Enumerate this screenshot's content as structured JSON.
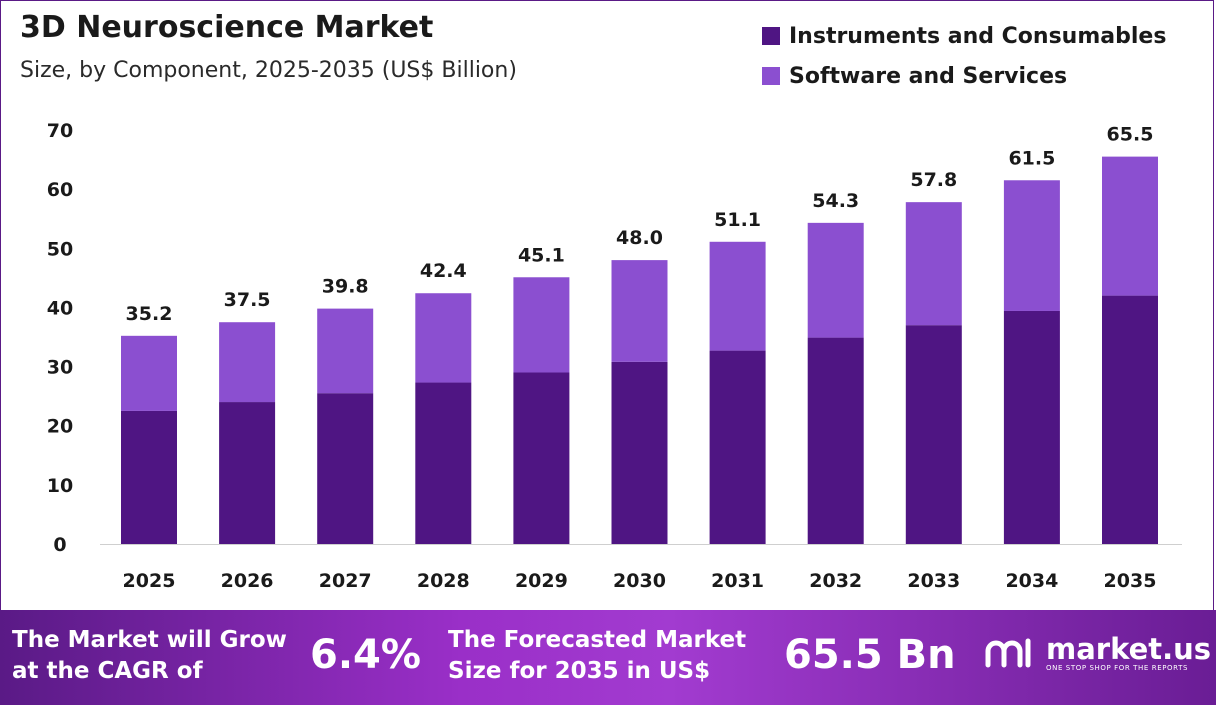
{
  "header": {
    "title": "3D Neuroscience Market",
    "subtitle": "Size, by Component, 2025-2035 (US$ Billion)"
  },
  "legend": [
    {
      "label": "Instruments and Consumables",
      "color": "#4f1583"
    },
    {
      "label": "Software and Services",
      "color": "#8b4fd0"
    }
  ],
  "chart_data": {
    "type": "bar",
    "stacked": true,
    "title": "3D Neuroscience Market",
    "subtitle": "Size, by Component, 2025-2035 (US$ Billion)",
    "xlabel": "",
    "ylabel": "",
    "ylim": [
      0,
      70
    ],
    "yticks": [
      0,
      10,
      20,
      30,
      40,
      50,
      60,
      70
    ],
    "categories": [
      "2025",
      "2026",
      "2027",
      "2028",
      "2029",
      "2030",
      "2031",
      "2032",
      "2033",
      "2034",
      "2035"
    ],
    "series": [
      {
        "name": "Instruments and Consumables",
        "color": "#4f1583",
        "values": [
          22.5,
          24.0,
          25.5,
          27.3,
          29.0,
          30.8,
          32.7,
          34.9,
          37.0,
          39.4,
          42.0
        ]
      },
      {
        "name": "Software and Services",
        "color": "#8b4fd0",
        "values": [
          12.7,
          13.5,
          14.3,
          15.1,
          16.1,
          17.2,
          18.4,
          19.4,
          20.8,
          22.1,
          23.5
        ]
      }
    ],
    "totals": [
      "35.2",
      "37.5",
      "39.8",
      "42.4",
      "45.1",
      "48.0",
      "51.1",
      "54.3",
      "57.8",
      "61.5",
      "65.5"
    ],
    "legend_position": "top-right",
    "grid": false
  },
  "footer": {
    "cagr_label": [
      "The Market will Grow",
      "at the CAGR of"
    ],
    "cagr_value": "6.4%",
    "forecast_label": [
      "The Forecasted Market",
      "Size for 2035 in US$"
    ],
    "forecast_value": "65.5 Bn",
    "brand_name": "market.us",
    "brand_tagline": "ONE STOP SHOP FOR THE REPORTS"
  }
}
